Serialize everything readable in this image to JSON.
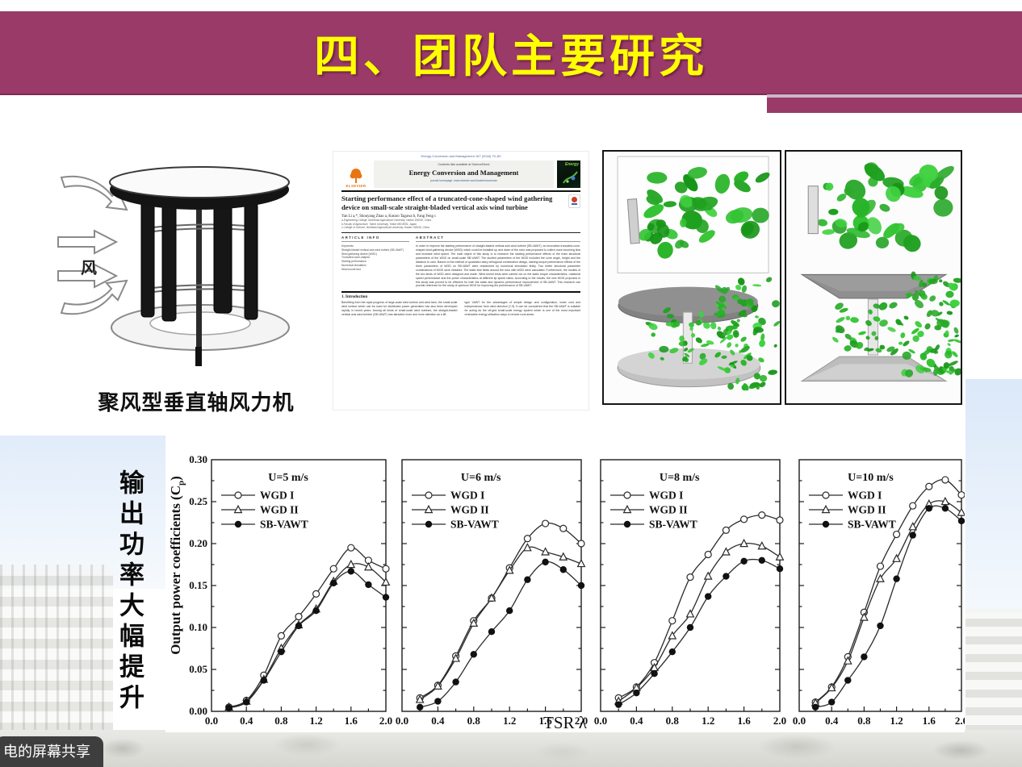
{
  "banner": {
    "title": "四、团队主要研究",
    "bg_color": "#993a68",
    "text_color": "#ffff00"
  },
  "screen_share": {
    "label": "电的屏幕共享"
  },
  "side_label": {
    "text": "输出功率大幅提升"
  },
  "figures": {
    "turbine": {
      "caption": "聚风型垂直轴风力机",
      "wind_label": "风"
    },
    "vortex_green": "#2db52d"
  },
  "paper": {
    "citation_line": "Energy Conversion and Management 167 (2018) 70–80",
    "contents_line": "Contents lists available at ScienceDirect",
    "journal_name": "Energy Conversion and Management",
    "homepage_line": "journal homepage: www.elsevier.com/locate/enconman",
    "publisher": "ELSEVIER",
    "cover_title": "Energy",
    "title": "Starting performance effect of a truncated-cone-shaped wind gathering device on small-scale straight-bladed vertical axis wind turbine",
    "authors": "Yan Li a,*, Shouyang Zhao a, Kotaro Tagawa b, Fang Feng c",
    "affiliations": [
      "a Engineering College, Northeast Agricultural University, Harbin 150030, China",
      "b Faculty of Agriculture, Tottori University, Tottori 680-8551, Japan",
      "c College of Science, Northeast Agricultural University, Harbin 150030, China"
    ],
    "article_info_header": "ARTICLE INFO",
    "abstract_header": "ABSTRACT",
    "keywords_label": "Keywords:",
    "keywords": [
      "Straight-bladed vertical axis wind turbine (SB-VAWT)",
      "Wind gathering device (WGD)",
      "Truncated-cone-shaped",
      "Starting performance",
      "Numerical simulation",
      "Wind tunnel test"
    ],
    "abstract_text": "In order to improve the starting performance of straight-bladed vertical axis wind turbine (SB-VAWT), an innovative truncated-cone-shaped wind gathering device (WGD) which could be installed up and down of the rotor was proposed to collect more incoming flow and increase wind speed. The main object of this study is to research the starting performance effects of the main structural parameters of the WGD on small-scale SB-VAWT. The studied parameters of the WGD included the cone angle, height and the distance to rotor. Based on the method of quadratic rotary orthogonal combination design, starting torque performance effects of the three parameters of WGD on SB-VAWT were researched by numerical simulation firstly. Two better structural parameter combinations of WGD were obtained. The static flow fields around the rotor with WGD were calculated. Furthermore, the models of the two kinds of WGD were designed and made. Wind tunnel tests were carried out on the static torque characteristics, rotational speed performance and the power characteristics at different tip speed ratios. According to the results, the new WGD proposed in this study was proved to be effective for both the static and dynamic performance improvement of SB-VAWT. This research can provide reference for the study of optimum WGD for improving the performance of SB-VAWT.",
    "intro_header": "1. Introduction",
    "intro_col1": "Benefiting from the rapid progress of large-scale wind turbine and wind farm, the small-scale wind turbine which can be used for distributed power generation has also been developed rapidly in recent years. Among all kinds of small-scale wind turbines, the straight-bladed vertical axis wind turbine (SB-VAWT) has attracted more and more attention as a lift-",
    "intro_col2": "type VAWT for the advantages of simple design and configuration, lower cost and independence from wind direction [7-9]. It can be considered that the SB-VAWT is suitable for acting as the off-grid small-scale energy system which is one of the most important renewable energy utilization ways in remote rural areas."
  },
  "chart_common": {
    "ylabel_prefix": "Output power coefficients (C",
    "ylabel_sub": "p",
    "ylabel_suffix": ")",
    "xlabel": "TSR λ",
    "yticks": [
      "0.00",
      "0.05",
      "0.10",
      "0.15",
      "0.20",
      "0.25",
      "0.30"
    ],
    "xticks": [
      "0.0",
      "0.4",
      "0.8",
      "1.2",
      "1.6",
      "2.0"
    ],
    "xlim": [
      0,
      2.0
    ],
    "ylim": [
      0,
      0.3
    ],
    "line_color": "#2a2a2a"
  },
  "chart_data": [
    {
      "type": "line",
      "title": "U=5 m/s",
      "x": [
        0.2,
        0.4,
        0.6,
        0.8,
        1.0,
        1.2,
        1.4,
        1.6,
        1.8,
        2.0
      ],
      "xlim": [
        0,
        2.0
      ],
      "ylim": [
        0,
        0.3
      ],
      "series": [
        {
          "name": "WGD I",
          "marker": "open-circle",
          "values": [
            0.005,
            0.013,
            0.043,
            0.09,
            0.113,
            0.14,
            0.17,
            0.195,
            0.18,
            0.17
          ]
        },
        {
          "name": "WGD II",
          "marker": "open-triangle",
          "values": [
            0.005,
            0.012,
            0.038,
            0.075,
            0.103,
            0.122,
            0.155,
            0.175,
            0.172,
            0.154
          ]
        },
        {
          "name": "SB-VAWT",
          "marker": "filled-circle",
          "values": [
            0.004,
            0.011,
            0.037,
            0.071,
            0.102,
            0.12,
            0.153,
            0.167,
            0.151,
            0.136
          ]
        }
      ]
    },
    {
      "type": "line",
      "title": "U=6 m/s",
      "x": [
        0.2,
        0.4,
        0.6,
        0.8,
        1.0,
        1.2,
        1.4,
        1.6,
        1.8,
        2.0
      ],
      "xlim": [
        0,
        2.0
      ],
      "ylim": [
        0,
        0.3
      ],
      "series": [
        {
          "name": "WGD I",
          "marker": "open-circle",
          "values": [
            0.016,
            0.031,
            0.066,
            0.108,
            0.135,
            0.171,
            0.206,
            0.224,
            0.218,
            0.2
          ]
        },
        {
          "name": "WGD II",
          "marker": "open-triangle",
          "values": [
            0.014,
            0.03,
            0.063,
            0.105,
            0.135,
            0.168,
            0.195,
            0.19,
            0.184,
            0.176
          ]
        },
        {
          "name": "SB-VAWT",
          "marker": "filled-circle",
          "values": [
            0.005,
            0.012,
            0.035,
            0.068,
            0.095,
            0.12,
            0.157,
            0.178,
            0.169,
            0.15
          ]
        }
      ]
    },
    {
      "type": "line",
      "title": "U=8 m/s",
      "x": [
        0.2,
        0.4,
        0.6,
        0.8,
        1.0,
        1.2,
        1.4,
        1.6,
        1.8,
        2.0
      ],
      "xlim": [
        0,
        2.0
      ],
      "ylim": [
        0,
        0.3
      ],
      "series": [
        {
          "name": "WGD I",
          "marker": "open-circle",
          "values": [
            0.016,
            0.029,
            0.058,
            0.108,
            0.16,
            0.187,
            0.216,
            0.229,
            0.234,
            0.228
          ]
        },
        {
          "name": "WGD II",
          "marker": "open-triangle",
          "values": [
            0.012,
            0.028,
            0.052,
            0.09,
            0.116,
            0.161,
            0.19,
            0.2,
            0.197,
            0.184
          ]
        },
        {
          "name": "SB-VAWT",
          "marker": "filled-circle",
          "values": [
            0.008,
            0.022,
            0.045,
            0.071,
            0.1,
            0.137,
            0.161,
            0.179,
            0.18,
            0.17
          ]
        }
      ]
    },
    {
      "type": "line",
      "title": "U=10 m/s",
      "x": [
        0.2,
        0.4,
        0.6,
        0.8,
        1.0,
        1.2,
        1.4,
        1.6,
        1.8,
        2.0
      ],
      "xlim": [
        0,
        2.0
      ],
      "ylim": [
        0,
        0.3
      ],
      "series": [
        {
          "name": "WGD I",
          "marker": "open-circle",
          "values": [
            0.011,
            0.029,
            0.065,
            0.118,
            0.173,
            0.211,
            0.245,
            0.268,
            0.276,
            0.258
          ]
        },
        {
          "name": "WGD II",
          "marker": "open-triangle",
          "values": [
            0.01,
            0.028,
            0.06,
            0.112,
            0.158,
            0.182,
            0.22,
            0.247,
            0.25,
            0.237
          ]
        },
        {
          "name": "SB-VAWT",
          "marker": "filled-circle",
          "values": [
            0.005,
            0.011,
            0.037,
            0.065,
            0.102,
            0.158,
            0.21,
            0.242,
            0.242,
            0.227
          ]
        }
      ]
    }
  ]
}
